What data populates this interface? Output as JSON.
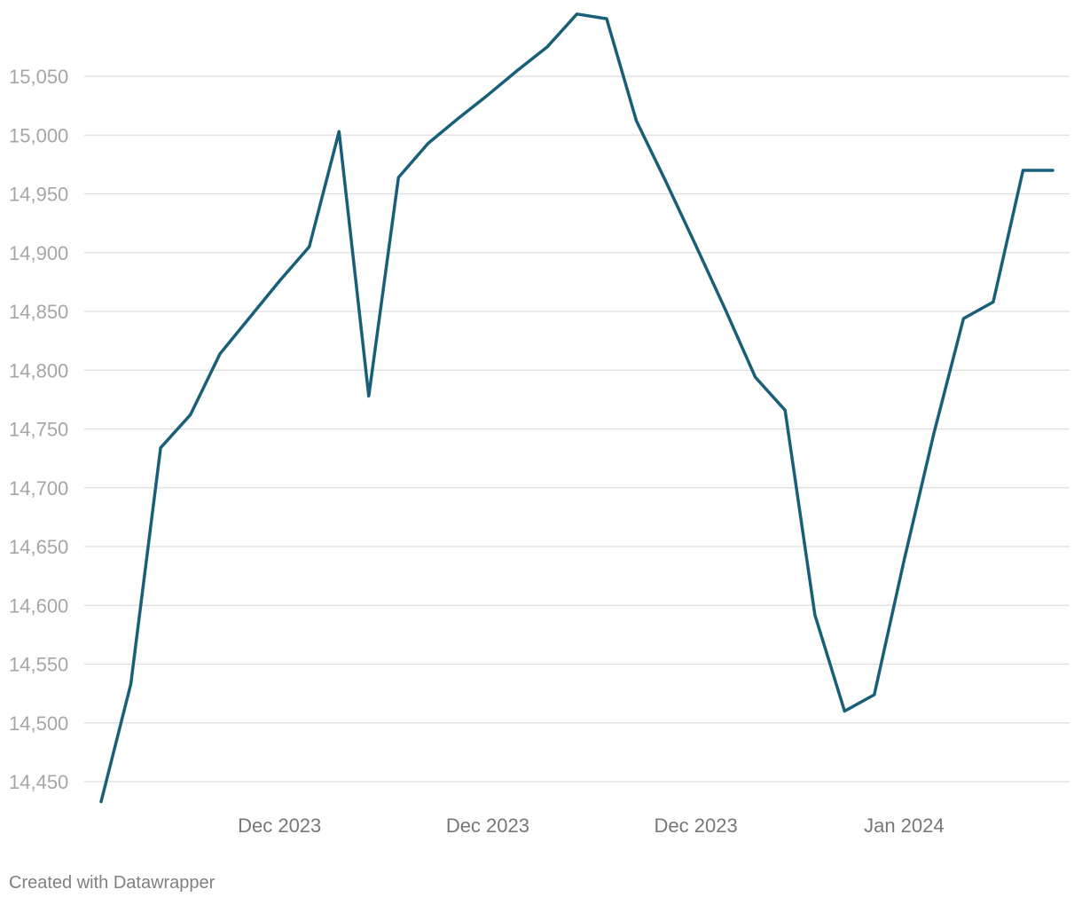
{
  "chart_data": {
    "type": "line",
    "title": "",
    "xlabel": "",
    "ylabel": "",
    "ylim": [
      14430,
      15105
    ],
    "y_ticks": [
      14450,
      14500,
      14550,
      14600,
      14650,
      14700,
      14750,
      14800,
      14850,
      14900,
      14950,
      15000,
      15050
    ],
    "y_tick_labels": [
      "14,450",
      "14,500",
      "14,550",
      "14,600",
      "14,650",
      "14,700",
      "14,750",
      "14,800",
      "14,850",
      "14,900",
      "14,950",
      "15,000",
      "15,050"
    ],
    "x_tick_labels": [
      {
        "label": "Dec 2023",
        "index": 6
      },
      {
        "label": "Dec 2023",
        "index": 13
      },
      {
        "label": "Dec 2023",
        "index": 20
      },
      {
        "label": "Jan 2024",
        "index": 27
      }
    ],
    "grid": true,
    "legend": "none",
    "line_color": "#1a5f78",
    "series": [
      {
        "values": [
          14433,
          14533,
          14734,
          14762,
          14814,
          14845,
          14876,
          14905,
          15003,
          14778,
          14964,
          14993,
          15014,
          15034,
          15055,
          15075,
          15103,
          15099,
          15012,
          14960,
          14906,
          14851,
          14794,
          14766,
          14592,
          14510,
          14524,
          14638,
          14746,
          14844,
          14858,
          14970,
          14970
        ]
      }
    ]
  },
  "footer": {
    "credit": "Created with Datawrapper"
  }
}
